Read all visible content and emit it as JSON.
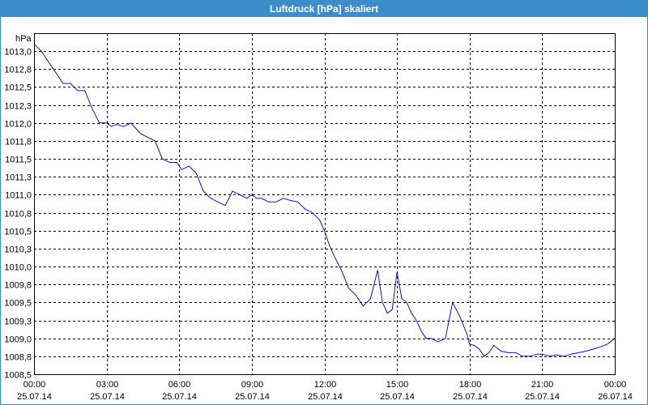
{
  "window": {
    "title": "Luftdruck [hPa] skaliert"
  },
  "chart_data": {
    "type": "line",
    "title": "Luftdruck [hPa] skaliert",
    "ylabel": "hPa",
    "xlabel": "",
    "ylim": [
      1008.5,
      1013.25
    ],
    "xlim_hours": [
      0,
      24
    ],
    "grid": true,
    "y_ticks": [
      "1008,5",
      "1008,8",
      "1009,0",
      "1009,3",
      "1009,5",
      "1009,8",
      "1010,0",
      "1010,3",
      "1010,5",
      "1010,8",
      "1011,0",
      "1011,3",
      "1011,5",
      "1011,8",
      "1012,0",
      "1012,3",
      "1012,5",
      "1012,8",
      "1013,0"
    ],
    "y_tick_values": [
      1008.5,
      1008.75,
      1009.0,
      1009.25,
      1009.5,
      1009.75,
      1010.0,
      1010.25,
      1010.5,
      1010.75,
      1011.0,
      1011.25,
      1011.5,
      1011.75,
      1012.0,
      1012.25,
      1012.5,
      1012.75,
      1013.0
    ],
    "x_ticks": [
      {
        "time": "00:00",
        "date": "25.07.14",
        "hour": 0
      },
      {
        "time": "03:00",
        "date": "25.07.14",
        "hour": 3
      },
      {
        "time": "06:00",
        "date": "25.07.14",
        "hour": 6
      },
      {
        "time": "09:00",
        "date": "25.07.14",
        "hour": 9
      },
      {
        "time": "12:00",
        "date": "25.07.14",
        "hour": 12
      },
      {
        "time": "15:00",
        "date": "25.07.14",
        "hour": 15
      },
      {
        "time": "18:00",
        "date": "25.07.14",
        "hour": 18
      },
      {
        "time": "21:00",
        "date": "25.07.14",
        "hour": 21
      },
      {
        "time": "00:00",
        "date": "26.07.14",
        "hour": 24
      }
    ],
    "series": [
      {
        "color": "#1010b0",
        "x": [
          0,
          0.3,
          0.6,
          0.9,
          1.2,
          1.5,
          1.8,
          2.1,
          2.4,
          2.7,
          3.0,
          3.2,
          3.4,
          3.7,
          4.0,
          4.4,
          4.7,
          5.0,
          5.3,
          5.6,
          5.9,
          6.1,
          6.4,
          6.7,
          7.0,
          7.3,
          7.6,
          7.9,
          8.2,
          8.5,
          8.8,
          9.0,
          9.2,
          9.4,
          9.7,
          10.0,
          10.3,
          10.6,
          10.9,
          11.2,
          11.5,
          11.8,
          12.0,
          12.2,
          12.4,
          12.7,
          13.0,
          13.3,
          13.6,
          13.9,
          14.2,
          14.4,
          14.6,
          14.8,
          15.0,
          15.2,
          15.4,
          15.6,
          15.8,
          16.0,
          16.2,
          16.4,
          16.7,
          17.0,
          17.3,
          17.6,
          17.9,
          18.0,
          18.2,
          18.4,
          18.6,
          18.8,
          19.0,
          19.3,
          19.6,
          19.9,
          20.2,
          20.5,
          20.8,
          21.0,
          21.3,
          21.6,
          21.9,
          22.2,
          22.5,
          22.8,
          23.1,
          23.4,
          23.7,
          24.0
        ],
        "y": [
          1013.1,
          1013.0,
          1012.85,
          1012.7,
          1012.55,
          1012.55,
          1012.45,
          1012.45,
          1012.2,
          1012.0,
          1012.0,
          1011.95,
          1011.98,
          1011.95,
          1012.0,
          1011.85,
          1011.8,
          1011.75,
          1011.5,
          1011.45,
          1011.45,
          1011.35,
          1011.4,
          1011.3,
          1011.05,
          1010.95,
          1010.9,
          1010.85,
          1011.05,
          1011.0,
          1010.95,
          1011.0,
          1010.95,
          1010.95,
          1010.9,
          1010.9,
          1010.95,
          1010.92,
          1010.9,
          1010.8,
          1010.75,
          1010.65,
          1010.5,
          1010.3,
          1010.15,
          1009.95,
          1009.7,
          1009.6,
          1009.45,
          1009.55,
          1009.95,
          1009.5,
          1009.35,
          1009.4,
          1009.92,
          1009.55,
          1009.5,
          1009.35,
          1009.25,
          1009.1,
          1009.0,
          1009.0,
          1008.95,
          1009.0,
          1009.5,
          1009.3,
          1009.05,
          1008.92,
          1008.9,
          1008.85,
          1008.75,
          1008.8,
          1008.9,
          1008.82,
          1008.8,
          1008.8,
          1008.75,
          1008.75,
          1008.78,
          1008.78,
          1008.75,
          1008.77,
          1008.75,
          1008.78,
          1008.8,
          1008.82,
          1008.85,
          1008.88,
          1008.92,
          1009.0
        ]
      }
    ]
  }
}
